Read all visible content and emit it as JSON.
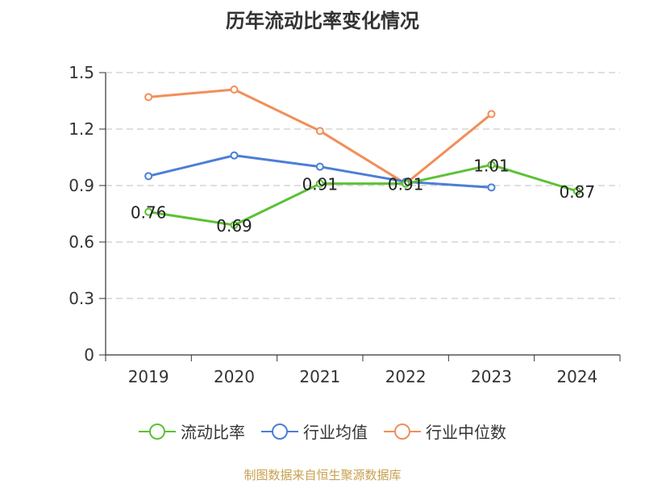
{
  "chart_data": {
    "type": "line",
    "title": "历年流动比率变化情况",
    "categories": [
      "2019",
      "2020",
      "2021",
      "2022",
      "2023",
      "2024"
    ],
    "ylim": [
      0,
      1.5
    ],
    "yticks": [
      "0",
      "0.3",
      "0.6",
      "0.9",
      "1.2",
      "1.5"
    ],
    "ytick_values": [
      0,
      0.3,
      0.6,
      0.9,
      1.2,
      1.5
    ],
    "grid": true,
    "legend_position": "bottom",
    "series": [
      {
        "name": "流动比率",
        "color": "#5cc134",
        "values": [
          0.76,
          0.69,
          0.91,
          0.91,
          1.01,
          0.87
        ],
        "labels": [
          "0.76",
          "0.69",
          "0.91",
          "0.91",
          "1.01",
          "0.87"
        ]
      },
      {
        "name": "行业均值",
        "color": "#4a7fd6",
        "values": [
          0.95,
          1.06,
          1.0,
          0.92,
          0.89,
          null
        ]
      },
      {
        "name": "行业中位数",
        "color": "#f28e58",
        "values": [
          1.37,
          1.41,
          1.19,
          0.91,
          1.28,
          null
        ]
      }
    ]
  },
  "footer": {
    "source": "制图数据来自恒生聚源数据库"
  }
}
